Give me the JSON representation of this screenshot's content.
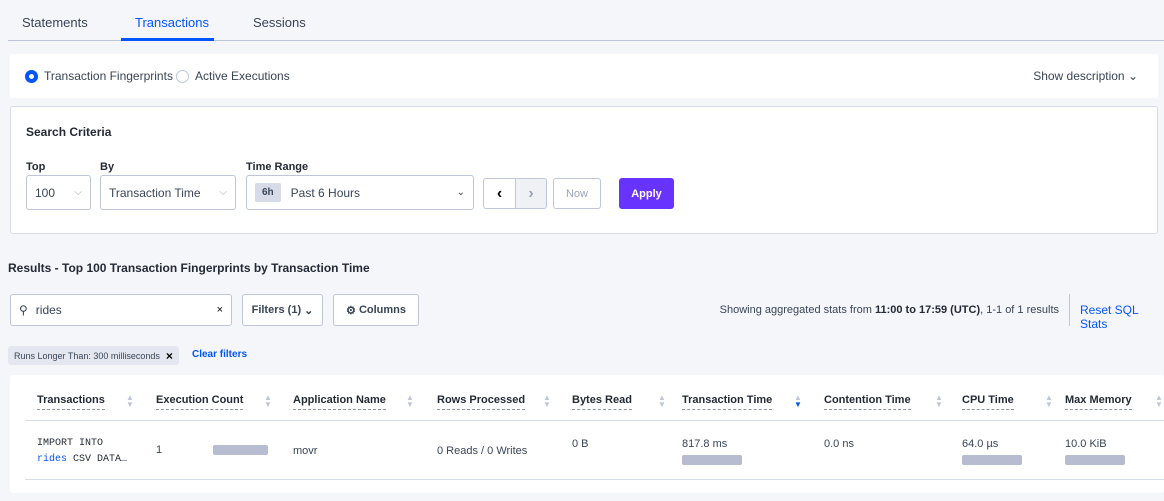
{
  "tabs": [
    {
      "label": "Statements"
    },
    {
      "label": "Transactions",
      "active": true
    },
    {
      "label": "Sessions"
    }
  ],
  "view_toggle": {
    "options": [
      "Transaction Fingerprints",
      "Active Executions"
    ],
    "selected": "Transaction Fingerprints",
    "show_description": "Show description"
  },
  "search_criteria": {
    "title": "Search Criteria",
    "top_label": "Top",
    "top_value": "100",
    "by_label": "By",
    "by_value": "Transaction Time",
    "time_range_label": "Time Range",
    "time_badge": "6h",
    "time_value": "Past 6 Hours",
    "now_label": "Now",
    "apply_label": "Apply"
  },
  "results": {
    "title": "Results - Top 100 Transaction Fingerprints by Transaction Time",
    "search_value": "rides",
    "filters_label": "Filters (1)",
    "columns_label": "Columns",
    "stats_prefix": "Showing aggregated stats from ",
    "stats_range": "11:00 to 17:59 (UTC)",
    "stats_suffix": ", 1-1 of 1 results",
    "reset_label": "Reset SQL Stats",
    "chip": "Runs Longer Than: 300 milliseconds",
    "clear_filters": "Clear filters"
  },
  "table": {
    "headers": [
      "Transactions",
      "Execution Count",
      "Application Name",
      "Rows Processed",
      "Bytes Read",
      "Transaction Time",
      "Contention Time",
      "CPU Time",
      "Max Memory"
    ],
    "sorted_column": "Transaction Time",
    "rows": [
      {
        "txn_line1": "IMPORT INTO",
        "txn_highlight": "rides",
        "txn_line2": " CSV DATA…",
        "execution_count": "1",
        "app": "movr",
        "rows": "0 Reads / 0 Writes",
        "bytes": "0 B",
        "txn_time": "817.8 ms",
        "contention": "0.0 ns",
        "cpu": "64.0 µs",
        "memory": "10.0 KiB"
      }
    ]
  },
  "colors": {
    "accent": "#0055ff",
    "apply": "#6933ff"
  }
}
